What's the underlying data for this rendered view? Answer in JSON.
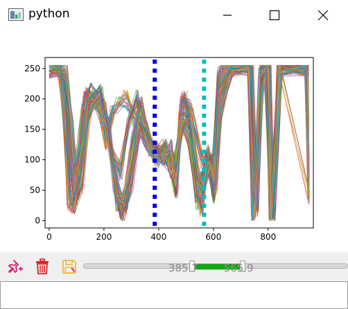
{
  "window": {
    "title": "python",
    "icon": "matplotlib-figure-icon",
    "controls": [
      "minimize-icon",
      "maximize-icon",
      "close-icon"
    ]
  },
  "chart_data": {
    "type": "line",
    "title": "",
    "xlabel": "",
    "ylabel": "",
    "xlim": [
      -15,
      965
    ],
    "ylim": [
      -12,
      268
    ],
    "x_ticks": [
      0,
      200,
      400,
      600,
      800
    ],
    "y_ticks": [
      0,
      50,
      100,
      150,
      200,
      250
    ],
    "x_tick_labels": [
      "0",
      "200",
      "400",
      "600",
      "800"
    ],
    "y_tick_labels": [
      "0",
      "50",
      "100",
      "150",
      "200",
      "250"
    ],
    "grid": false,
    "legend": "none",
    "series_description_count": "many overlapping colored profile lines",
    "series": [
      {
        "values": [
          [
            0,
            255
          ],
          [
            40,
            255
          ],
          [
            60,
            230
          ],
          [
            80,
            140
          ],
          [
            95,
            60
          ],
          [
            110,
            100
          ],
          [
            130,
            200
          ],
          [
            170,
            195
          ],
          [
            190,
            170
          ],
          [
            210,
            130
          ],
          [
            230,
            180
          ],
          [
            250,
            190
          ],
          [
            280,
            200
          ],
          [
            310,
            170
          ],
          [
            340,
            150
          ],
          [
            370,
            120
          ],
          [
            400,
            115
          ],
          [
            430,
            100
          ],
          [
            450,
            90
          ],
          [
            470,
            120
          ],
          [
            490,
            190
          ],
          [
            520,
            170
          ],
          [
            560,
            100
          ],
          [
            580,
            105
          ],
          [
            600,
            90
          ],
          [
            620,
            240
          ],
          [
            660,
            255
          ],
          [
            730,
            255
          ],
          [
            745,
            10
          ],
          [
            770,
            210
          ],
          [
            790,
            255
          ],
          [
            810,
            5
          ],
          [
            840,
            255
          ],
          [
            940,
            255
          ],
          [
            950,
            45
          ]
        ]
      },
      {
        "values": [
          [
            0,
            250
          ],
          [
            40,
            252
          ],
          [
            55,
            180
          ],
          [
            75,
            40
          ],
          [
            90,
            20
          ],
          [
            120,
            60
          ],
          [
            150,
            190
          ],
          [
            190,
            210
          ],
          [
            220,
            140
          ],
          [
            250,
            30
          ],
          [
            270,
            10
          ],
          [
            300,
            60
          ],
          [
            330,
            150
          ],
          [
            360,
            130
          ],
          [
            390,
            105
          ],
          [
            420,
            120
          ],
          [
            440,
            100
          ],
          [
            460,
            80
          ],
          [
            480,
            160
          ],
          [
            510,
            140
          ],
          [
            540,
            30
          ],
          [
            560,
            60
          ],
          [
            580,
            100
          ],
          [
            600,
            40
          ],
          [
            620,
            200
          ],
          [
            660,
            250
          ],
          [
            735,
            250
          ],
          [
            750,
            30
          ],
          [
            775,
            250
          ],
          [
            800,
            250
          ],
          [
            815,
            20
          ],
          [
            840,
            250
          ],
          [
            940,
            250
          ],
          [
            950,
            60
          ]
        ]
      },
      {
        "values": [
          [
            0,
            252
          ],
          [
            45,
            255
          ],
          [
            65,
            220
          ],
          [
            85,
            110
          ],
          [
            100,
            40
          ],
          [
            130,
            150
          ],
          [
            160,
            200
          ],
          [
            200,
            185
          ],
          [
            230,
            110
          ],
          [
            260,
            80
          ],
          [
            290,
            160
          ],
          [
            320,
            200
          ],
          [
            350,
            140
          ],
          [
            380,
            110
          ],
          [
            410,
            110
          ],
          [
            440,
            95
          ],
          [
            460,
            60
          ],
          [
            480,
            180
          ],
          [
            500,
            200
          ],
          [
            530,
            110
          ],
          [
            555,
            20
          ],
          [
            580,
            110
          ],
          [
            600,
            70
          ],
          [
            620,
            230
          ],
          [
            660,
            255
          ],
          [
            740,
            255
          ],
          [
            755,
            15
          ],
          [
            780,
            230
          ],
          [
            805,
            255
          ],
          [
            820,
            10
          ],
          [
            845,
            255
          ],
          [
            940,
            255
          ],
          [
            950,
            50
          ]
        ]
      },
      {
        "values": [
          [
            0,
            248
          ],
          [
            38,
            250
          ],
          [
            58,
            200
          ],
          [
            78,
            80
          ],
          [
            93,
            35
          ],
          [
            115,
            120
          ],
          [
            140,
            205
          ],
          [
            180,
            200
          ],
          [
            215,
            160
          ],
          [
            240,
            60
          ],
          [
            265,
            15
          ],
          [
            295,
            100
          ],
          [
            325,
            180
          ],
          [
            355,
            150
          ],
          [
            385,
            115
          ],
          [
            415,
            105
          ],
          [
            445,
            110
          ],
          [
            465,
            50
          ],
          [
            485,
            200
          ],
          [
            515,
            185
          ],
          [
            545,
            60
          ],
          [
            570,
            80
          ],
          [
            590,
            100
          ],
          [
            610,
            60
          ],
          [
            625,
            180
          ],
          [
            665,
            252
          ],
          [
            738,
            252
          ],
          [
            752,
            20
          ],
          [
            772,
            240
          ],
          [
            798,
            252
          ],
          [
            818,
            15
          ],
          [
            842,
            252
          ],
          [
            940,
            252
          ],
          [
            950,
            55
          ]
        ]
      },
      {
        "values": [
          [
            0,
            254
          ],
          [
            42,
            254
          ],
          [
            62,
            240
          ],
          [
            82,
            160
          ],
          [
            97,
            80
          ],
          [
            125,
            180
          ],
          [
            155,
            215
          ],
          [
            195,
            190
          ],
          [
            225,
            120
          ],
          [
            255,
            40
          ],
          [
            280,
            25
          ],
          [
            305,
            130
          ],
          [
            335,
            190
          ],
          [
            365,
            125
          ],
          [
            395,
            100
          ],
          [
            425,
            118
          ],
          [
            448,
            85
          ],
          [
            468,
            100
          ],
          [
            488,
            170
          ],
          [
            518,
            150
          ],
          [
            548,
            40
          ],
          [
            575,
            95
          ],
          [
            595,
            85
          ],
          [
            615,
            110
          ],
          [
            630,
            245
          ],
          [
            670,
            255
          ],
          [
            742,
            255
          ],
          [
            758,
            25
          ],
          [
            778,
            220
          ],
          [
            802,
            255
          ],
          [
            822,
            25
          ],
          [
            848,
            255
          ],
          [
            940,
            255
          ],
          [
            950,
            70
          ]
        ]
      },
      {
        "values": [
          [
            0,
            246
          ],
          [
            36,
            249
          ],
          [
            56,
            170
          ],
          [
            72,
            30
          ],
          [
            88,
            25
          ],
          [
            118,
            90
          ],
          [
            145,
            185
          ],
          [
            185,
            205
          ],
          [
            212,
            150
          ],
          [
            245,
            45
          ],
          [
            272,
            30
          ],
          [
            302,
            80
          ],
          [
            328,
            160
          ],
          [
            358,
            140
          ],
          [
            388,
            112
          ],
          [
            418,
            108
          ],
          [
            442,
            120
          ],
          [
            462,
            70
          ],
          [
            482,
            150
          ],
          [
            512,
            175
          ],
          [
            542,
            80
          ],
          [
            565,
            50
          ],
          [
            585,
            95
          ],
          [
            605,
            55
          ],
          [
            622,
            210
          ],
          [
            662,
            250
          ],
          [
            733,
            250
          ],
          [
            748,
            12
          ],
          [
            770,
            245
          ],
          [
            796,
            250
          ],
          [
            812,
            8
          ],
          [
            838,
            250
          ],
          [
            940,
            250
          ],
          [
            950,
            40
          ]
        ]
      }
    ],
    "vertical_markers": [
      {
        "x": 385.7,
        "color": "#0000ee",
        "style": "dotted"
      },
      {
        "x": 565.9,
        "color": "#00bfbf",
        "style": "dotted"
      }
    ]
  },
  "toolbar": {
    "buttons": [
      {
        "name": "add-point-button",
        "icon": "pin-plus-icon",
        "color": "#d0206a"
      },
      {
        "name": "delete-button",
        "icon": "trash-icon",
        "color": "#dd2222"
      },
      {
        "name": "save-button",
        "icon": "floppy-disk-icon",
        "color": "#f2b93a"
      }
    ],
    "range_slider": {
      "min": 0,
      "max": 945,
      "low_label": "385.7",
      "high_label": "565.9",
      "low_value": 385.7,
      "high_value": 565.9,
      "fill_color": "#12a812"
    }
  },
  "status": {
    "text": ""
  }
}
